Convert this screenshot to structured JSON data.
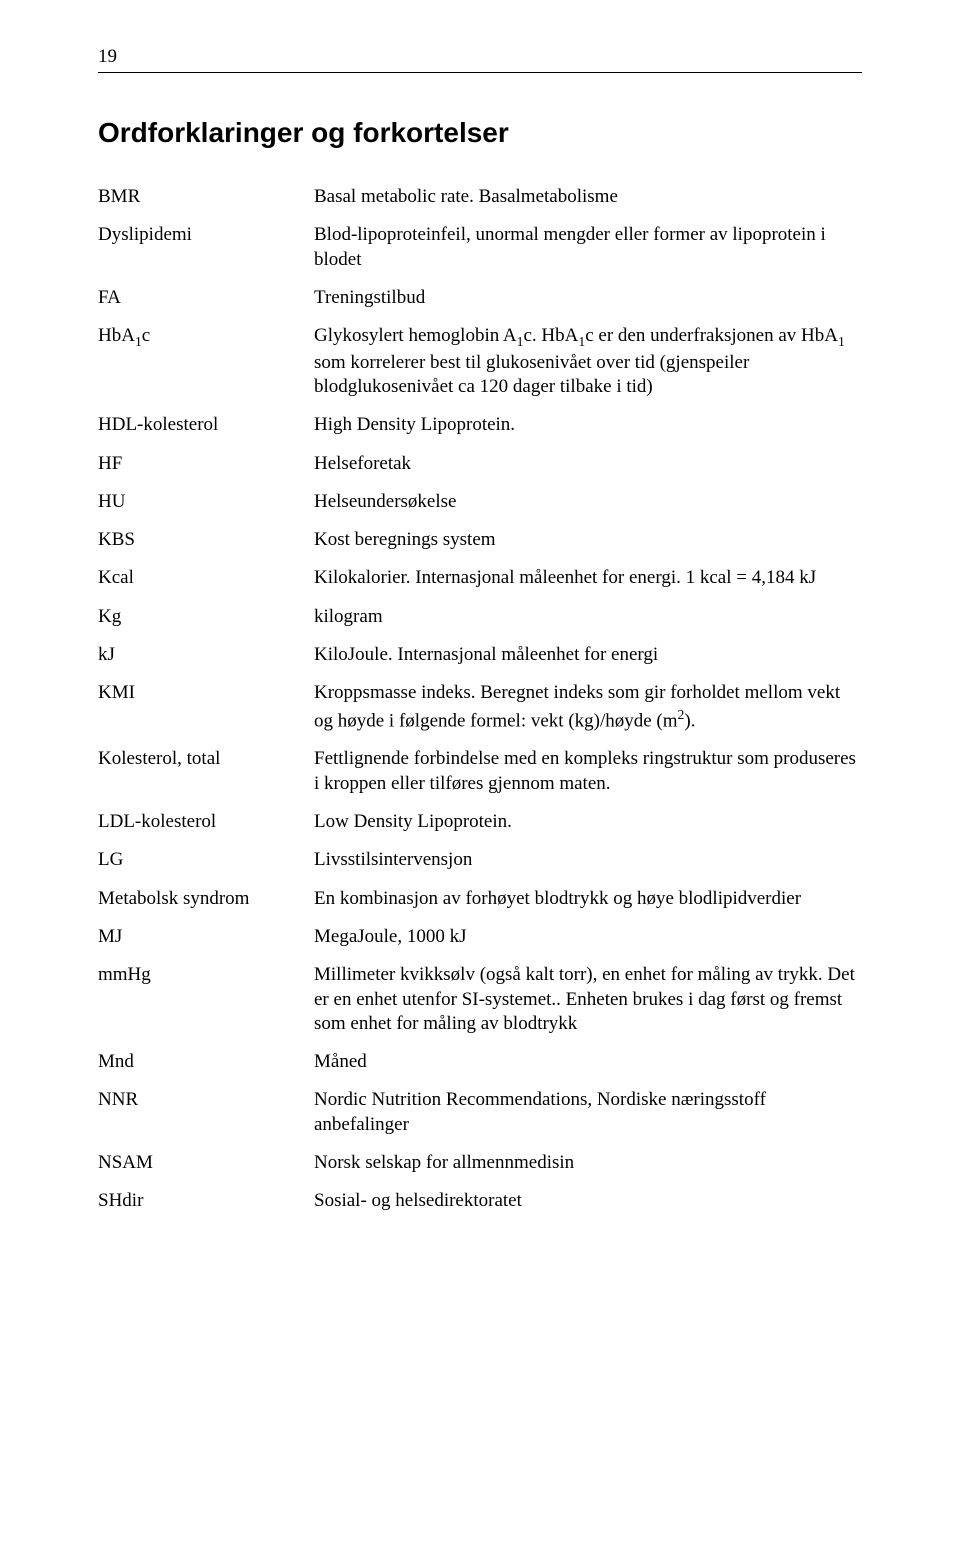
{
  "page_number": "19",
  "heading": "Ordforklaringer og forkortelser",
  "entries": [
    {
      "term": "BMR",
      "def": "Basal metabolic rate. Basalmetabolisme"
    },
    {
      "term": "Dyslipidemi",
      "def": "Blod-lipoproteinfeil, unormal mengder eller former av lipoprotein i blodet"
    },
    {
      "term": "FA",
      "def": "Treningstilbud"
    },
    {
      "term_html": "HbA<span class=\"sub\">1</span>c",
      "def_html": "Glykosylert hemoglobin A<span class=\"sub\">1</span>c. HbA<span class=\"sub\">1</span>c er den underfraksjonen av HbA<span class=\"sub\">1</span> som korrelerer best til glukosenivået over tid (gjenspeiler blodglukosenivået ca 120 dager tilbake i tid)"
    },
    {
      "term": "HDL-kolesterol",
      "def": "High Density Lipoprotein."
    },
    {
      "term": "HF",
      "def": "Helseforetak"
    },
    {
      "term": "HU",
      "def": "Helseundersøkelse"
    },
    {
      "term": "KBS",
      "def": "Kost beregnings system"
    },
    {
      "term": "Kcal",
      "def": "Kilokalorier. Internasjonal måleenhet for energi. 1 kcal = 4,184 kJ"
    },
    {
      "term": "Kg",
      "def": "kilogram"
    },
    {
      "term": "kJ",
      "def": "KiloJoule. Internasjonal måleenhet for energi"
    },
    {
      "term": "KMI",
      "def_html": "Kroppsmasse indeks. Beregnet indeks som gir forholdet mellom vekt og høyde i følgende formel: vekt (kg)/høyde (m<span class=\"sup\">2</span>)."
    },
    {
      "term": "Kolesterol, total",
      "def": "Fettlignende forbindelse med en kompleks ringstruktur som produseres i kroppen eller tilføres gjennom maten."
    },
    {
      "term": "LDL-kolesterol",
      "def": "Low Density Lipoprotein."
    },
    {
      "term": "LG",
      "def": "Livsstilsintervensjon"
    },
    {
      "term": "Metabolsk syndrom",
      "def": "En kombinasjon av forhøyet blodtrykk og høye blodlipidverdier"
    },
    {
      "term": "MJ",
      "def": "MegaJoule, 1000 kJ"
    },
    {
      "term": "mmHg",
      "def": "Millimeter kvikksølv (også kalt torr), en enhet for måling av trykk. Det er en enhet utenfor SI-systemet.. Enheten brukes i dag først og fremst som enhet for måling av blodtrykk"
    },
    {
      "term": "Mnd",
      "def": "Måned"
    },
    {
      "term": "NNR",
      "def": "Nordic Nutrition Recommendations, Nordiske næringsstoff anbefalinger"
    },
    {
      "term": "NSAM",
      "def": "Norsk selskap for allmennmedisin"
    },
    {
      "term": "SHdir",
      "def": "Sosial- og helsedirektoratet"
    }
  ]
}
